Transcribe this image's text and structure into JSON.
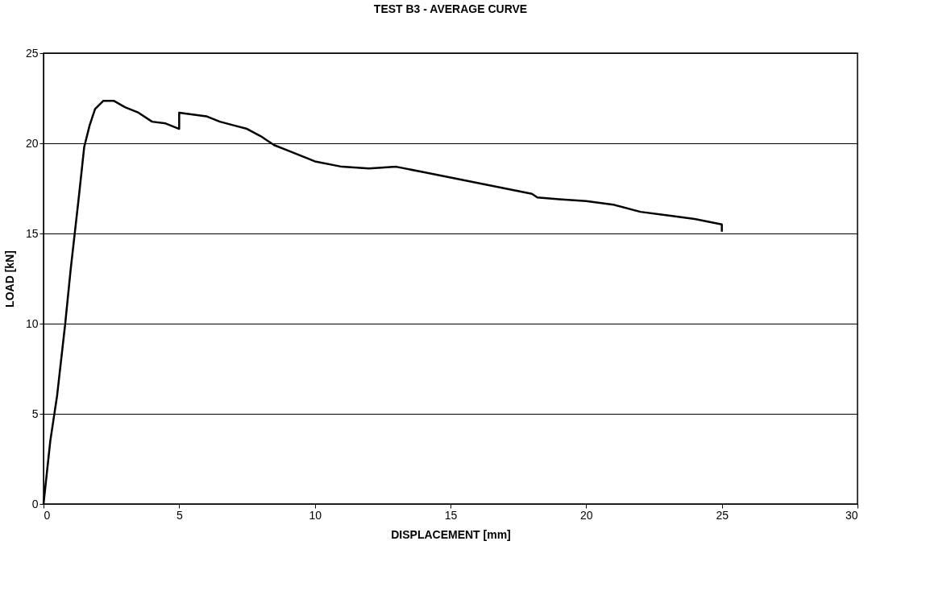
{
  "chart_data": {
    "type": "line",
    "title": "TEST B3 - AVERAGE CURVE",
    "xlabel": "DISPLACEMENT [mm]",
    "ylabel": "LOAD [kN]",
    "xlim": [
      0,
      30
    ],
    "xticks": [
      0,
      5,
      10,
      15,
      20,
      25,
      30
    ],
    "ylim": [
      0,
      25
    ],
    "yticks": [
      0,
      5,
      10,
      15,
      20,
      25
    ],
    "grid": "y",
    "marker": "none",
    "line_style": "solid",
    "series": [
      {
        "color": "#000000",
        "x": [
          0,
          0.25,
          0.5,
          0.8,
          1.0,
          1.3,
          1.5,
          1.7,
          1.9,
          2.2,
          2.6,
          3.0,
          3.5,
          4.0,
          4.5,
          5.0,
          5.0,
          5.5,
          6.0,
          6.5,
          7.0,
          7.5,
          8.0,
          8.5,
          9.0,
          10.0,
          11.0,
          12.0,
          13.0,
          14.0,
          15.0,
          16.0,
          17.0,
          18.0,
          18.2,
          19.0,
          20.0,
          21.0,
          22.0,
          23.0,
          24.0,
          25.0,
          25.0
        ],
        "values": [
          0,
          3.5,
          6,
          10,
          13,
          17,
          19.8,
          21,
          21.9,
          22.35,
          22.35,
          22.0,
          21.7,
          21.2,
          21.1,
          20.8,
          21.7,
          21.6,
          21.5,
          21.2,
          21.0,
          20.8,
          20.4,
          19.9,
          19.6,
          19.0,
          18.7,
          18.6,
          18.7,
          18.4,
          18.1,
          17.8,
          17.5,
          17.2,
          17.0,
          16.9,
          16.8,
          16.6,
          16.2,
          16.0,
          15.8,
          15.5,
          15.1
        ]
      }
    ]
  }
}
